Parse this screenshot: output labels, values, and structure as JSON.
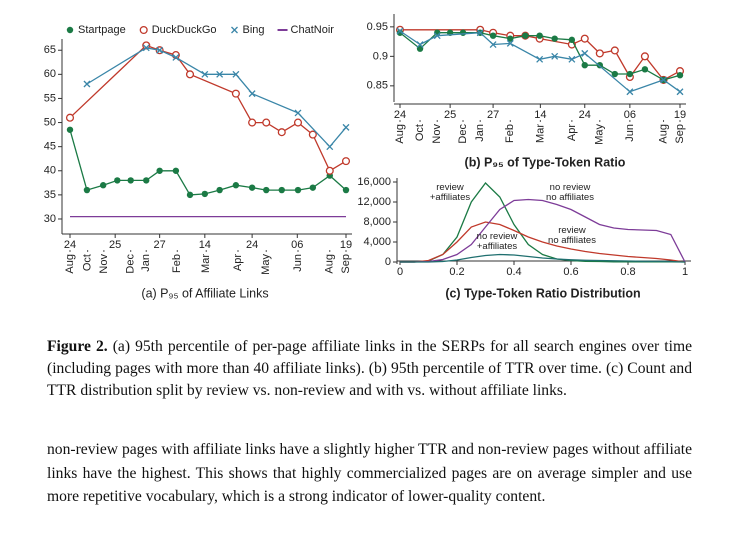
{
  "chart_data": [
    {
      "type": "line",
      "title": "(a) P₉₅ of Affiliate Links",
      "xlim": [
        0,
        391
      ],
      "xticks": [
        {
          "value": 0,
          "label": "24"
        },
        {
          "value": 64,
          "label": "25"
        },
        {
          "value": 127,
          "label": "27"
        },
        {
          "value": 191,
          "label": "14"
        },
        {
          "value": 258,
          "label": "24"
        },
        {
          "value": 322,
          "label": "06"
        },
        {
          "value": 391,
          "label": "19"
        }
      ],
      "xticks_month": [
        {
          "value": 0,
          "label": "Aug"
        },
        {
          "value": 25,
          "label": "Oct"
        },
        {
          "value": 48,
          "label": "Nov"
        },
        {
          "value": 86,
          "label": "Dec"
        },
        {
          "value": 108,
          "label": "Jan"
        },
        {
          "value": 152,
          "label": "Feb"
        },
        {
          "value": 193,
          "label": "Mar"
        },
        {
          "value": 238,
          "label": "Apr"
        },
        {
          "value": 278,
          "label": "May"
        },
        {
          "value": 323,
          "label": "Jun"
        },
        {
          "value": 368,
          "label": "Aug"
        },
        {
          "value": 391,
          "label": "Sep"
        }
      ],
      "ylim": [
        27.3,
        66.5
      ],
      "yticks": [
        30,
        35,
        40,
        45,
        50,
        55,
        60,
        65
      ],
      "legend": "top",
      "series": [
        {
          "name": "Startpage",
          "color": "#1b7a45",
          "marker": "circle-filled",
          "x": [
            0,
            24,
            47,
            67,
            86,
            108,
            127,
            150,
            170,
            191,
            212,
            235,
            258,
            278,
            300,
            323,
            344,
            368,
            391
          ],
          "values": [
            48.5,
            36,
            37,
            38,
            38,
            38,
            40,
            40,
            35,
            35.2,
            36,
            37,
            36.5,
            36,
            36,
            36,
            36.5,
            39,
            36
          ]
        },
        {
          "name": "DuckDuckGo",
          "color": "#c0392b",
          "marker": "circle-open",
          "x": [
            0,
            108,
            127,
            150,
            170,
            235,
            258,
            278,
            300,
            323,
            344,
            368,
            391
          ],
          "values": [
            51,
            66,
            65,
            64,
            60,
            56,
            50,
            50,
            48,
            50,
            47.5,
            40,
            42
          ]
        },
        {
          "name": "Bing",
          "color": "#3a86a8",
          "marker": "x",
          "x": [
            24,
            108,
            127,
            150,
            191,
            212,
            235,
            258,
            323,
            368,
            391
          ],
          "values": [
            58,
            65.5,
            65,
            63.5,
            60,
            60,
            60,
            56,
            52,
            45,
            49
          ]
        },
        {
          "name": "ChatNoir",
          "color": "#7d3c98",
          "marker": "none",
          "x": [
            0,
            391
          ],
          "values": [
            30.5,
            30.5
          ]
        }
      ]
    },
    {
      "type": "line",
      "title": "(b) P₉₅ of Type-Token Ratio",
      "xlim": [
        0,
        391
      ],
      "xticks": [
        {
          "value": 0,
          "label": "24"
        },
        {
          "value": 70,
          "label": "25"
        },
        {
          "value": 130,
          "label": "27"
        },
        {
          "value": 196,
          "label": "14"
        },
        {
          "value": 258,
          "label": "24"
        },
        {
          "value": 321,
          "label": "06"
        },
        {
          "value": 391,
          "label": "19"
        }
      ],
      "xticks_month": [
        {
          "value": 0,
          "label": "Aug"
        },
        {
          "value": 28,
          "label": "Oct"
        },
        {
          "value": 52,
          "label": "Nov"
        },
        {
          "value": 88,
          "label": "Dec"
        },
        {
          "value": 112,
          "label": "Jan"
        },
        {
          "value": 154,
          "label": "Feb"
        },
        {
          "value": 196,
          "label": "Mar"
        },
        {
          "value": 240,
          "label": "Apr"
        },
        {
          "value": 279,
          "label": "May"
        },
        {
          "value": 321,
          "label": "Jun"
        },
        {
          "value": 368,
          "label": "Aug"
        },
        {
          "value": 391,
          "label": "Sep"
        }
      ],
      "ylim": [
        0.826,
        0.965
      ],
      "yticks": [
        0.85,
        0.9,
        0.95
      ],
      "series": [
        {
          "color": "#c0392b",
          "marker": "circle-open",
          "x": [
            0,
            112,
            130,
            154,
            175,
            195,
            240,
            258,
            279,
            300,
            321,
            342,
            368,
            391
          ],
          "values": [
            0.945,
            0.945,
            0.94,
            0.935,
            0.935,
            0.93,
            0.92,
            0.93,
            0.905,
            0.91,
            0.865,
            0.9,
            0.86,
            0.875
          ]
        },
        {
          "color": "#1b7a45",
          "marker": "circle-filled",
          "x": [
            0,
            28,
            52,
            70,
            88,
            112,
            130,
            154,
            175,
            195,
            216,
            240,
            258,
            279,
            300,
            321,
            342,
            368,
            391
          ],
          "values": [
            0.94,
            0.913,
            0.94,
            0.94,
            0.94,
            0.94,
            0.935,
            0.93,
            0.935,
            0.935,
            0.93,
            0.928,
            0.885,
            0.885,
            0.87,
            0.87,
            0.878,
            0.86,
            0.868
          ]
        },
        {
          "color": "#3a86a8",
          "marker": "x",
          "x": [
            0,
            28,
            52,
            112,
            130,
            154,
            195,
            216,
            240,
            258,
            321,
            368,
            391
          ],
          "values": [
            0.943,
            0.92,
            0.935,
            0.94,
            0.92,
            0.922,
            0.895,
            0.9,
            0.895,
            0.905,
            0.84,
            0.86,
            0.84
          ]
        }
      ]
    },
    {
      "type": "line",
      "title": "(c) Type-Token Ratio Distribution",
      "xlim": [
        0,
        1
      ],
      "xticks": [
        0,
        0.2,
        0.4,
        0.6,
        0.8,
        1
      ],
      "ylim": [
        0,
        16000
      ],
      "yticks": [
        0,
        {
          "value": 4000,
          "label": "4,000"
        },
        {
          "value": 8000,
          "label": "8,000"
        },
        {
          "value": 12000,
          "label": "12,000"
        },
        {
          "value": 16000,
          "label": "16,000"
        }
      ],
      "x": [
        0,
        0.05,
        0.1,
        0.15,
        0.2,
        0.25,
        0.3,
        0.35,
        0.4,
        0.45,
        0.5,
        0.55,
        0.6,
        0.65,
        0.7,
        0.75,
        0.8,
        0.85,
        0.9,
        0.95,
        1
      ],
      "series": [
        {
          "name": "review\n+affiliates",
          "color": "#1b7a45",
          "marker": "none",
          "values": [
            0,
            0,
            200,
            1500,
            5000,
            12000,
            15800,
            13000,
            7500,
            3500,
            1500,
            600,
            300,
            150,
            100,
            50,
            50,
            30,
            20,
            10,
            0
          ]
        },
        {
          "name": "review\nno affiliates",
          "color": "#c0392b",
          "marker": "none",
          "values": [
            0,
            0,
            300,
            1500,
            4000,
            7000,
            8000,
            7500,
            6300,
            5000,
            4000,
            3200,
            2600,
            2100,
            1700,
            1400,
            1100,
            900,
            700,
            400,
            0
          ]
        },
        {
          "name": "no review\nno affiliates",
          "color": "#7d3c98",
          "marker": "none",
          "values": [
            0,
            0,
            100,
            500,
            1500,
            3500,
            7000,
            10500,
            12300,
            12500,
            12300,
            11500,
            10500,
            9000,
            7500,
            6800,
            6500,
            6400,
            6300,
            5500,
            0
          ]
        },
        {
          "name": "no review\n+affiliates",
          "color": "#1f6f6f",
          "marker": "none",
          "values": [
            0,
            0,
            0,
            100,
            400,
            900,
            1300,
            1500,
            1400,
            1100,
            800,
            600,
            450,
            350,
            300,
            250,
            200,
            150,
            120,
            80,
            0
          ]
        }
      ]
    }
  ],
  "figure": {
    "label": "Figure 2.",
    "caption": "(a) 95th percentile of per-page affiliate links in the SERPs for all search engines over time (including pages with more than 40 affiliate links). (b) 95th percentile of TTR over time. (c) Count and TTR distribution split by review vs. non-review and with vs. without affiliate links."
  },
  "body": "non-review pages with affiliate links have a slightly higher TTR and non-review pages without affiliate links have the highest. This shows that highly commercialized pages are on average simpler and use more repetitive vocabulary, which is a strong indicator of lower-quality content."
}
